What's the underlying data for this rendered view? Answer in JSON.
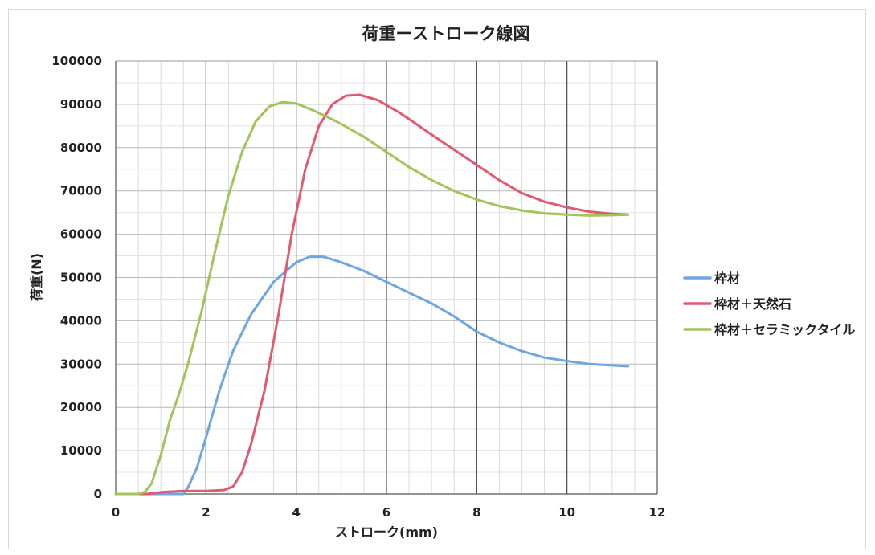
{
  "chart_data": {
    "type": "line",
    "title": "荷重ーストローク線図",
    "xlabel": "ストローク(mm)",
    "ylabel": "荷重(N)",
    "xlim": [
      0,
      12
    ],
    "ylim": [
      0,
      100000
    ],
    "x_ticks": [
      0,
      2,
      4,
      6,
      8,
      10,
      12
    ],
    "x_tick_labels": [
      "0",
      "2",
      "4",
      "6",
      "8",
      "10",
      "12"
    ],
    "y_ticks": [
      0,
      10000,
      20000,
      30000,
      40000,
      50000,
      60000,
      70000,
      80000,
      90000,
      100000
    ],
    "y_tick_labels": [
      "0",
      "10000",
      "20000",
      "30000",
      "40000",
      "50000",
      "60000",
      "70000",
      "80000",
      "90000",
      "100000"
    ],
    "grid": true,
    "legend_position": "right",
    "series": [
      {
        "name": "枠材",
        "color": "#6ea6df",
        "points": [
          [
            0,
            0
          ],
          [
            1.5,
            0
          ],
          [
            1.6,
            1500
          ],
          [
            1.8,
            6000
          ],
          [
            2.0,
            13000
          ],
          [
            2.3,
            24000
          ],
          [
            2.6,
            33000
          ],
          [
            3.0,
            41500
          ],
          [
            3.5,
            49000
          ],
          [
            4.0,
            53500
          ],
          [
            4.3,
            54800
          ],
          [
            4.6,
            54800
          ],
          [
            5.0,
            53500
          ],
          [
            5.5,
            51500
          ],
          [
            6.0,
            49000
          ],
          [
            6.5,
            46500
          ],
          [
            7.0,
            44000
          ],
          [
            7.5,
            41000
          ],
          [
            8.0,
            37500
          ],
          [
            8.5,
            35000
          ],
          [
            9.0,
            33000
          ],
          [
            9.5,
            31500
          ],
          [
            10.0,
            30700
          ],
          [
            10.5,
            30000
          ],
          [
            11.0,
            29700
          ],
          [
            11.35,
            29500
          ]
        ]
      },
      {
        "name": "枠材＋天然石",
        "color": "#e05a72",
        "points": [
          [
            0,
            0
          ],
          [
            0.7,
            0
          ],
          [
            1.0,
            400
          ],
          [
            1.5,
            700
          ],
          [
            2.0,
            700
          ],
          [
            2.4,
            900
          ],
          [
            2.6,
            1700
          ],
          [
            2.8,
            5000
          ],
          [
            3.0,
            11500
          ],
          [
            3.3,
            24000
          ],
          [
            3.6,
            41000
          ],
          [
            3.9,
            60000
          ],
          [
            4.2,
            75000
          ],
          [
            4.5,
            85000
          ],
          [
            4.8,
            90000
          ],
          [
            5.1,
            92000
          ],
          [
            5.4,
            92200
          ],
          [
            5.8,
            91000
          ],
          [
            6.3,
            88000
          ],
          [
            7.0,
            83000
          ],
          [
            7.5,
            79500
          ],
          [
            8.0,
            76000
          ],
          [
            8.5,
            72500
          ],
          [
            9.0,
            69500
          ],
          [
            9.5,
            67500
          ],
          [
            10.0,
            66200
          ],
          [
            10.5,
            65200
          ],
          [
            11.0,
            64700
          ],
          [
            11.35,
            64500
          ]
        ]
      },
      {
        "name": "枠材＋セラミックタイル",
        "color": "#a3c45a",
        "points": [
          [
            0,
            0
          ],
          [
            0.5,
            0
          ],
          [
            0.65,
            500
          ],
          [
            0.8,
            2500
          ],
          [
            1.0,
            9000
          ],
          [
            1.2,
            17000
          ],
          [
            1.4,
            23000
          ],
          [
            1.6,
            30000
          ],
          [
            1.9,
            42000
          ],
          [
            2.2,
            56000
          ],
          [
            2.5,
            69000
          ],
          [
            2.8,
            79000
          ],
          [
            3.1,
            86000
          ],
          [
            3.4,
            89500
          ],
          [
            3.7,
            90500
          ],
          [
            4.0,
            90200
          ],
          [
            4.4,
            88500
          ],
          [
            4.9,
            86000
          ],
          [
            5.5,
            82500
          ],
          [
            6.0,
            79000
          ],
          [
            6.5,
            75500
          ],
          [
            7.0,
            72500
          ],
          [
            7.5,
            70000
          ],
          [
            8.0,
            68000
          ],
          [
            8.5,
            66500
          ],
          [
            9.0,
            65500
          ],
          [
            9.5,
            64800
          ],
          [
            10.0,
            64500
          ],
          [
            10.5,
            64300
          ],
          [
            11.0,
            64400
          ],
          [
            11.35,
            64500
          ]
        ]
      }
    ]
  }
}
